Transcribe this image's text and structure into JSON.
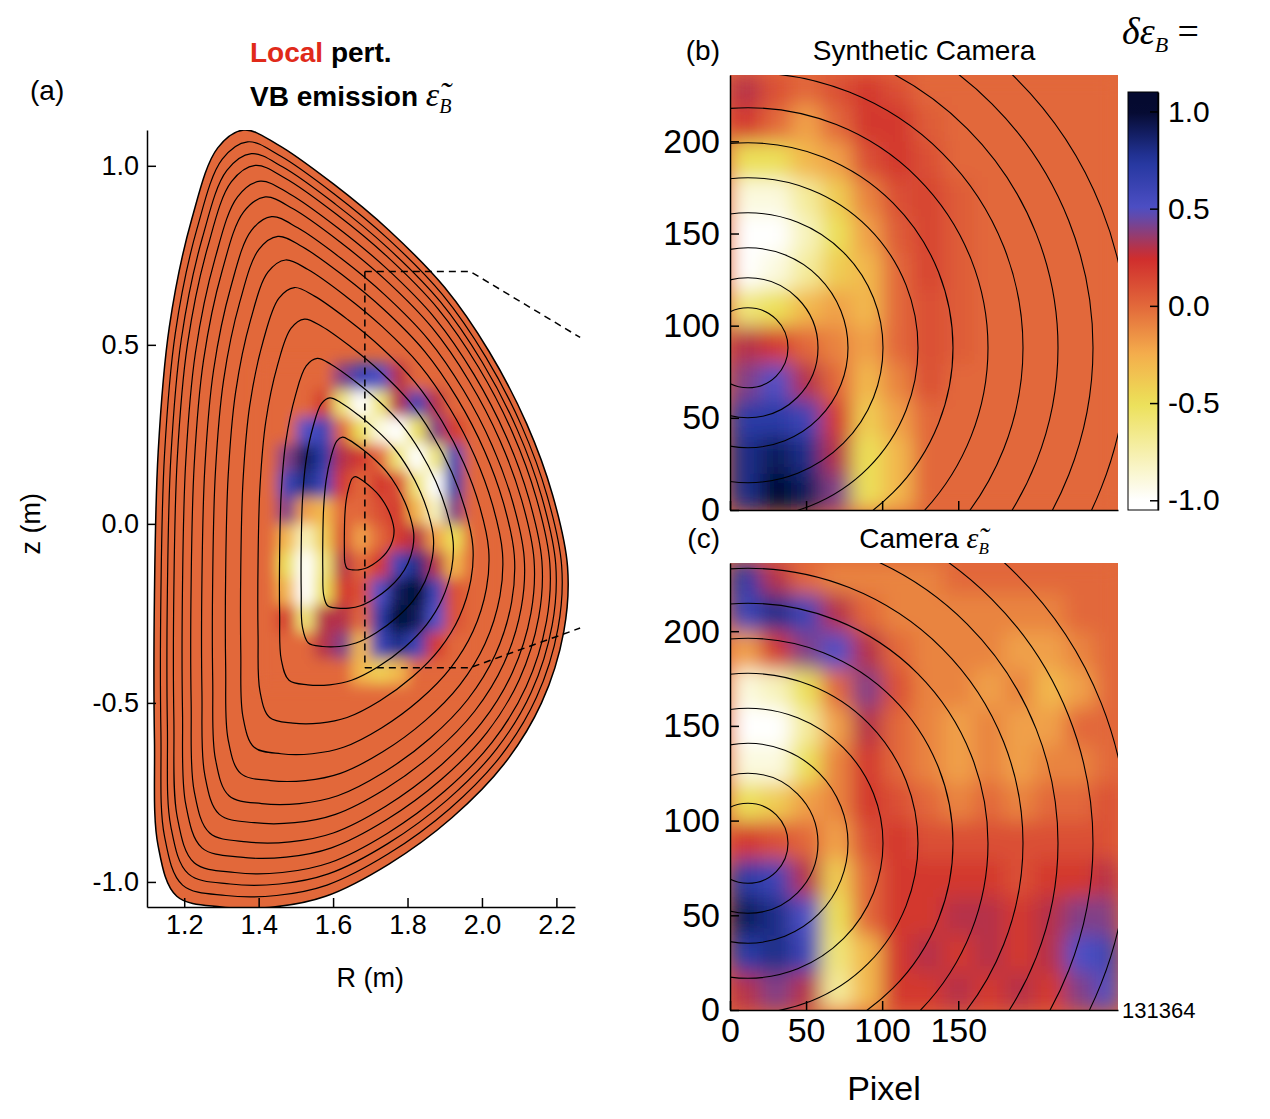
{
  "chart_data": [
    {
      "type": "heatmap",
      "title": {
        "highlight": "Local",
        "text": " pert.",
        "line2": "VB emission ",
        "symbol": "ε̃",
        "subscript": "B"
      },
      "panel": "(a)",
      "x_label": "R (m)",
      "y_label": "z (m)",
      "xlim": [
        1.1,
        2.25
      ],
      "ylim": [
        -1.07,
        1.1
      ],
      "xticks": [
        1.2,
        1.4,
        1.6,
        1.8,
        {
          "value": 2,
          "label": "2.0"
        },
        2.2
      ],
      "yticks": [
        {
          "value": -1,
          "label": "-1.0"
        },
        -0.5,
        {
          "value": 0,
          "label": "0.0"
        },
        0.5,
        {
          "value": 1,
          "label": "1.0"
        }
      ],
      "boundary": {
        "R": [
          1.36,
          1.45,
          1.6,
          1.75,
          1.9,
          2.02,
          2.12,
          2.19,
          2.23,
          2.22,
          2.16,
          2.06,
          1.92,
          1.75,
          1.58,
          1.44,
          1.3,
          1.18,
          1.13,
          1.12,
          1.12,
          1.13,
          1.16,
          1.22,
          1.29
        ],
        "z": [
          1.1,
          1.06,
          0.95,
          0.82,
          0.66,
          0.48,
          0.28,
          0.08,
          -0.12,
          -0.3,
          -0.5,
          -0.67,
          -0.82,
          -0.95,
          -1.04,
          -1.07,
          -1.07,
          -1.04,
          -0.9,
          -0.6,
          -0.2,
          0.2,
          0.55,
          0.85,
          1.05
        ]
      },
      "x_bins": [
        1.4,
        1.45,
        1.5,
        1.55,
        1.6,
        1.65,
        1.7,
        1.75,
        1.8,
        1.85,
        1.9,
        1.95,
        2.0
      ],
      "y_bins": [
        -0.45,
        -0.375,
        -0.3,
        -0.225,
        -0.15,
        -0.075,
        0,
        0.075,
        0.15,
        0.225,
        0.3,
        0.375,
        0.45
      ],
      "cells": [
        [
          0,
          0,
          0,
          0,
          0,
          -0.3,
          -0.4,
          -0.3,
          0,
          0,
          0,
          0
        ],
        [
          0,
          0,
          0,
          0.3,
          0.4,
          -0.3,
          0.6,
          0.8,
          0.6,
          0.2,
          0,
          0
        ],
        [
          0,
          0.2,
          -0.6,
          0.3,
          0.3,
          0,
          0.7,
          1.0,
          0.9,
          0.5,
          0.1,
          0
        ],
        [
          0,
          -0.3,
          -1.0,
          -0.5,
          0.2,
          0.1,
          0.5,
          0.9,
          1.0,
          0.6,
          0.1,
          0
        ],
        [
          0,
          -0.5,
          -1.0,
          -0.6,
          0.3,
          0,
          0.2,
          0.6,
          0.8,
          0.3,
          -0.3,
          0
        ],
        [
          0,
          -0.3,
          -0.8,
          -0.4,
          0.1,
          -0.2,
          0,
          0.2,
          0.3,
          -0.2,
          -0.5,
          0
        ],
        [
          0,
          0.4,
          -0.2,
          -0.3,
          0,
          0,
          0.1,
          0.2,
          -0.3,
          -0.8,
          0.4,
          0
        ],
        [
          0,
          0.6,
          0.8,
          0.6,
          0.2,
          0,
          0.2,
          0.1,
          -0.6,
          -1.0,
          0.7,
          0
        ],
        [
          0,
          0.4,
          0.9,
          0.7,
          0.3,
          0.2,
          0,
          -0.6,
          -1.0,
          -0.6,
          0.6,
          0
        ],
        [
          0,
          0,
          0.5,
          0.6,
          0,
          -0.5,
          -0.9,
          -1.0,
          -0.5,
          0.4,
          0.2,
          0
        ],
        [
          0,
          0,
          0,
          0.2,
          -0.6,
          -1.0,
          -0.6,
          0.3,
          0.6,
          0.3,
          0,
          0
        ],
        [
          0,
          0,
          0,
          0,
          0.4,
          0.6,
          0.5,
          0.3,
          0,
          0,
          0,
          0
        ]
      ]
    },
    {
      "type": "heatmap",
      "title": "Synthetic Camera",
      "panel": "(b)",
      "xlim": [
        0,
        255
      ],
      "ylim": [
        0,
        236
      ],
      "xticks": [
        0,
        50,
        100,
        150
      ],
      "yticks": [
        0,
        50,
        100,
        150,
        200
      ],
      "tick_labels": "y",
      "x_bins": [
        0,
        20,
        40,
        60,
        80,
        100,
        120,
        140,
        160,
        180,
        200,
        220,
        240,
        255
      ],
      "y_bins": [
        0,
        20,
        40,
        60,
        80,
        100,
        120,
        140,
        160,
        180,
        200,
        220,
        236
      ],
      "cells": [
        [
          0.8,
          1.0,
          0.9,
          0.4,
          -0.5,
          -0.3,
          0,
          0,
          0,
          0,
          0,
          0,
          0
        ],
        [
          0.8,
          0.9,
          0.8,
          0.3,
          -0.5,
          -0.3,
          0,
          0,
          0,
          0,
          0,
          0,
          0
        ],
        [
          0.7,
          0.7,
          0.6,
          0.2,
          -0.4,
          -0.2,
          0,
          0,
          0,
          0,
          0,
          0,
          0
        ],
        [
          0.4,
          0.5,
          0.3,
          0,
          -0.3,
          -0.1,
          0.1,
          0,
          0,
          0,
          0,
          0,
          0
        ],
        [
          0.3,
          0.2,
          0,
          -0.1,
          -0.2,
          0,
          0.1,
          0.05,
          0,
          0,
          0,
          0,
          0
        ],
        [
          -0.6,
          -0.5,
          -0.3,
          -0.2,
          -0.3,
          0,
          0.1,
          0.05,
          0,
          0,
          0,
          0,
          0
        ],
        [
          -1.0,
          -0.9,
          -0.7,
          -0.4,
          -0.3,
          0,
          0.15,
          0.05,
          0,
          0,
          0,
          0,
          0
        ],
        [
          -1.0,
          -1.0,
          -0.8,
          -0.5,
          -0.2,
          0.05,
          0.15,
          0.05,
          0,
          0,
          0,
          0,
          0
        ],
        [
          -0.9,
          -0.9,
          -0.7,
          -0.4,
          -0.1,
          0.1,
          0.15,
          0.05,
          0,
          0,
          0,
          0,
          0
        ],
        [
          -0.5,
          -0.5,
          -0.3,
          -0.2,
          0.1,
          0.2,
          0.1,
          0,
          0,
          0,
          0,
          0,
          0
        ],
        [
          0.2,
          0,
          -0.2,
          0,
          0.2,
          0.2,
          0.05,
          0,
          0,
          0,
          0,
          0,
          0
        ],
        [
          0.3,
          0.1,
          0,
          0.1,
          0.2,
          0.1,
          0,
          0,
          0,
          0,
          0,
          0,
          0
        ]
      ]
    },
    {
      "type": "heatmap",
      "title": {
        "text": "Camera ",
        "symbol": "ε̃",
        "subscript": "B"
      },
      "panel": "(c)",
      "x_label": "Pixel",
      "xlim": [
        0,
        255
      ],
      "ylim": [
        0,
        236
      ],
      "xticks": [
        0,
        50,
        100,
        150
      ],
      "yticks": [
        0,
        50,
        100,
        150,
        200
      ],
      "x_bins": [
        0,
        20,
        40,
        60,
        80,
        100,
        120,
        140,
        160,
        180,
        200,
        220,
        240,
        255
      ],
      "y_bins": [
        0,
        20,
        40,
        60,
        80,
        100,
        120,
        140,
        160,
        180,
        200,
        220,
        236
      ],
      "cells": [
        [
          0.3,
          0.4,
          0.3,
          -0.7,
          -0.3,
          0.2,
          0.2,
          0.3,
          0.2,
          0.3,
          0.2,
          0.4,
          0.5
        ],
        [
          0.7,
          0.8,
          0.6,
          -0.6,
          -0.3,
          0.2,
          0.3,
          0.2,
          0.3,
          0.2,
          0.3,
          0.5,
          0.6
        ],
        [
          0.9,
          0.8,
          0.5,
          -0.5,
          0,
          0.2,
          0.2,
          0.3,
          0.3,
          0.2,
          0.3,
          0.4,
          0.4
        ],
        [
          0.7,
          0.6,
          0.3,
          -0.4,
          0,
          0.2,
          0.2,
          0.2,
          0.2,
          0.1,
          0.2,
          0.2,
          0.3
        ],
        [
          0.2,
          0.1,
          0,
          -0.2,
          0.1,
          0.2,
          0.1,
          0.1,
          0.1,
          0.1,
          0.1,
          0.1,
          0.1
        ],
        [
          -0.5,
          -0.4,
          -0.2,
          -0.1,
          0.2,
          0.1,
          0,
          -0.1,
          0,
          -0.1,
          0,
          0,
          0.1
        ],
        [
          -0.9,
          -0.9,
          -0.5,
          -0.1,
          0.2,
          0,
          -0.1,
          -0.2,
          -0.1,
          -0.2,
          -0.1,
          -0.1,
          0
        ],
        [
          -1.0,
          -1.0,
          -0.7,
          -0.2,
          0.3,
          0,
          -0.1,
          -0.2,
          -0.1,
          -0.2,
          -0.2,
          0,
          0
        ],
        [
          -0.9,
          -0.8,
          -0.5,
          0,
          0.4,
          0.1,
          -0.1,
          -0.1,
          -0.2,
          -0.1,
          -0.3,
          -0.2,
          0
        ],
        [
          -0.2,
          0.2,
          0.4,
          0.5,
          0.3,
          0,
          -0.1,
          -0.1,
          -0.1,
          -0.2,
          -0.2,
          -0.1,
          0
        ],
        [
          0.6,
          0.8,
          0.6,
          0.3,
          0,
          -0.1,
          -0.1,
          -0.1,
          -0.1,
          -0.1,
          -0.1,
          0,
          0
        ],
        [
          0.7,
          0.3,
          0,
          -0.1,
          -0.1,
          -0.1,
          -0.1,
          0,
          0,
          0,
          0,
          0,
          0
        ]
      ]
    }
  ],
  "colorbar": {
    "label": {
      "symbol": "δε",
      "subscript": "B",
      "suffix": " ="
    },
    "range": [
      -1.05,
      1.1
    ],
    "ticks": [
      {
        "value": -1,
        "label": "-1.0"
      },
      -0.5,
      {
        "value": 0,
        "label": "0.0"
      },
      0.5,
      {
        "value": 1,
        "label": "1.0"
      }
    ]
  },
  "shot": "131364"
}
